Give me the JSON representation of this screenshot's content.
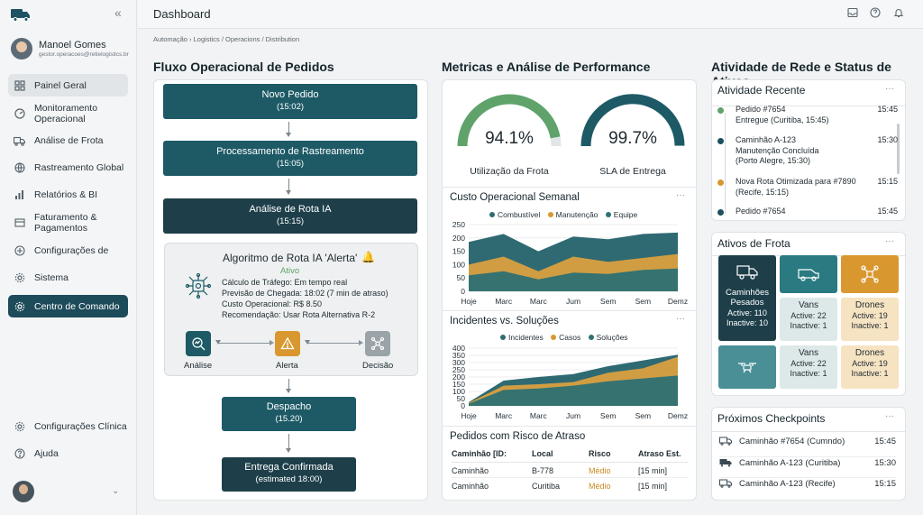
{
  "sidebar": {
    "user": {
      "name": "Manoel Gomes",
      "email": "gestor.operacoes@retielogistics.br"
    },
    "items": [
      {
        "label": "Painel Geral",
        "icon": "dashboard-grid-icon"
      },
      {
        "label": "Monitoramento Operacional",
        "icon": "gauge-icon"
      },
      {
        "label": "Análise de Frota",
        "icon": "truck-icon"
      },
      {
        "label": "Rastreamento Global",
        "icon": "globe-icon"
      },
      {
        "label": "Relatórios & BI",
        "icon": "bar-chart-icon"
      },
      {
        "label": "Faturamento & Pagamentos",
        "icon": "invoice-icon"
      },
      {
        "label": "Configurações de",
        "icon": "plus-circle-icon"
      },
      {
        "label": "Sistema",
        "icon": "gear-icon"
      },
      {
        "label": "Centro de Comando",
        "icon": "gear-icon"
      }
    ],
    "footer": [
      {
        "label": "Configurações Clínica",
        "icon": "gear-icon"
      },
      {
        "label": "Ajuda",
        "icon": "help-icon"
      }
    ]
  },
  "header": {
    "title": "Dashboard",
    "breadcrumb": "Automação  ›  Logistics / Operacions / Distribution"
  },
  "flow": {
    "title": "Fluxo Operacional de Pedidos",
    "steps": [
      {
        "label": "Novo Pedido",
        "time": "(15:02)"
      },
      {
        "label": "Processamento de Rastreamento",
        "time": "(15:05)"
      },
      {
        "label": "Análise de Rota IA",
        "time": "(15:15)"
      }
    ],
    "algo": {
      "title": "Algoritmo de Rota IA 'Alerta'",
      "status": "Ativo",
      "lines": [
        "Cálculo de Tráfego: Em tempo real",
        "Previsão de Chegada: 18:02 (7 min de atraso)",
        "Custo Operacional: R$ 8.50",
        "Recomendação: Usar Rota Alternativa R-2"
      ],
      "stages": [
        "Análise",
        "Alerta",
        "Decisão"
      ]
    },
    "steps2": [
      {
        "label": "Despacho",
        "time": "(15.20)"
      },
      {
        "label": "Entrega Confirmada",
        "time": "(estimated 18:00)"
      }
    ]
  },
  "metrics": {
    "title": "Metricas e Análise de Performance",
    "gauges": [
      {
        "value": "94.1%",
        "label": "Utilização da Frota",
        "fraction": 0.941,
        "color": "#5fa36b"
      },
      {
        "value": "99.7%",
        "label": "SLA de Entrega",
        "fraction": 0.997,
        "color": "#1d5a66"
      }
    ],
    "cost_title": "Custo Operacional Semanal",
    "incidents_title": "Incidentes vs. Soluções",
    "risk_title": "Pedidos com Risco de Atraso",
    "risk_headers": [
      "Caminhão [ID:",
      "Local",
      "Risco",
      "Atraso Est."
    ],
    "risk_rows": [
      [
        "Caminhão",
        "B-778",
        "Médio",
        "[15 min]"
      ],
      [
        "Caminhão",
        "Curitiba",
        "Médio",
        "[15 min]"
      ]
    ]
  },
  "chart_data": [
    {
      "type": "area",
      "title": "Custo Operacional Semanal",
      "categories": [
        "Hoje",
        "Marc",
        "Marc",
        "Jum",
        "Sem",
        "Sem",
        "Demz"
      ],
      "series": [
        {
          "name": "Combustível",
          "color": "#2e6b73",
          "values": [
            185,
            215,
            150,
            205,
            195,
            215,
            220
          ]
        },
        {
          "name": "Manutenção",
          "color": "#d9972f",
          "values": [
            100,
            130,
            75,
            130,
            110,
            125,
            140
          ]
        },
        {
          "name": "Equipe",
          "color": "#2e7275",
          "values": [
            60,
            75,
            45,
            70,
            65,
            80,
            85
          ]
        }
      ],
      "ylim": [
        0,
        250
      ],
      "yticks": [
        0,
        50,
        100,
        150,
        200,
        250
      ]
    },
    {
      "type": "area",
      "title": "Incidentes vs. Soluções",
      "categories": [
        "Hoje",
        "Marc",
        "Marc",
        "Jum",
        "Sem",
        "Sem",
        "Demz"
      ],
      "series": [
        {
          "name": "Incidentes",
          "color": "#2e6b73",
          "values": [
            25,
            175,
            200,
            220,
            275,
            315,
            355
          ]
        },
        {
          "name": "Casos",
          "color": "#d9972f",
          "values": [
            20,
            140,
            150,
            165,
            230,
            260,
            340
          ]
        },
        {
          "name": "Soluções",
          "color": "#2e7275",
          "values": [
            15,
            110,
            120,
            140,
            170,
            190,
            210
          ]
        }
      ],
      "ylim": [
        0,
        400
      ],
      "yticks": [
        0,
        50,
        100,
        150,
        200,
        250,
        300,
        350,
        400
      ]
    }
  ],
  "network": {
    "title": "Atividade de Rede e Status de Ativos",
    "activity_title": "Atividade Recente",
    "activity": [
      {
        "lines": [
          "Pedido #7654",
          "Entregue (Curitiba, 15:45)"
        ],
        "time": "15:45",
        "color": "#5fa36b"
      },
      {
        "lines": [
          "Caminhão A-123",
          "Manutenção Concluída",
          "(Porto Alegre, 15:30)"
        ],
        "time": "15:30",
        "color": "#1d4f5c"
      },
      {
        "lines": [
          "Nova Rota Otimizada para #7890",
          "(Recife, 15:15)"
        ],
        "time": "15:15",
        "color": "#d9972f"
      },
      {
        "lines": [
          "Pedido #7654"
        ],
        "time": "15:45",
        "color": "#1d4f5c"
      }
    ],
    "assets_title": "Ativos de Frota",
    "assets": [
      {
        "name": "Caminhões Pesados",
        "active": "Active: 110",
        "inactive": "Inactive: 10",
        "icon": "truck-icon"
      },
      {
        "name": "Vans",
        "active": "Active: 22",
        "inactive": "Inactive: 1",
        "icon": "van-icon"
      },
      {
        "name": "Drones",
        "active": "Active: 19",
        "inactive": "Inactive: 1",
        "icon": "drone-icon"
      },
      {
        "name": "",
        "active": "",
        "inactive": "",
        "icon": "drone-icon"
      },
      {
        "name": "Vans",
        "active": "Active: 22",
        "inactive": "Inactive: 1",
        "icon": "van-icon"
      },
      {
        "name": "Drones",
        "active": "Active: 19",
        "inactive": "Inactive: 1",
        "icon": "drone-icon"
      }
    ],
    "checkpoints_title": "Próximos Checkpoints",
    "checkpoints": [
      {
        "label": "Caminhão #7654 (Cumndo)",
        "time": "15:45"
      },
      {
        "label": "Caminhão A-123 (Curitiba)",
        "time": "15:30"
      },
      {
        "label": "Caminhão A-123 (Recife)",
        "time": "15:15"
      }
    ]
  },
  "colors": {
    "primary": "#1d5a66",
    "dark": "#1e4b5a",
    "accent": "#d9972f",
    "green": "#5fa36b"
  }
}
